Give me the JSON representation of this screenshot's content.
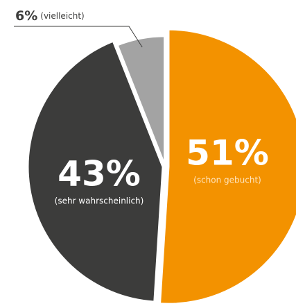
{
  "chart_data": {
    "type": "pie",
    "categories": [
      "(schon gebucht)",
      "(sehr wahrscheinlich)",
      "(vielleicht)"
    ],
    "values": [
      51,
      43,
      6
    ],
    "value_labels": [
      "51%",
      "43%",
      "6%"
    ],
    "colors": [
      "#f39200",
      "#3c3c3b",
      "#a3a3a3"
    ]
  }
}
